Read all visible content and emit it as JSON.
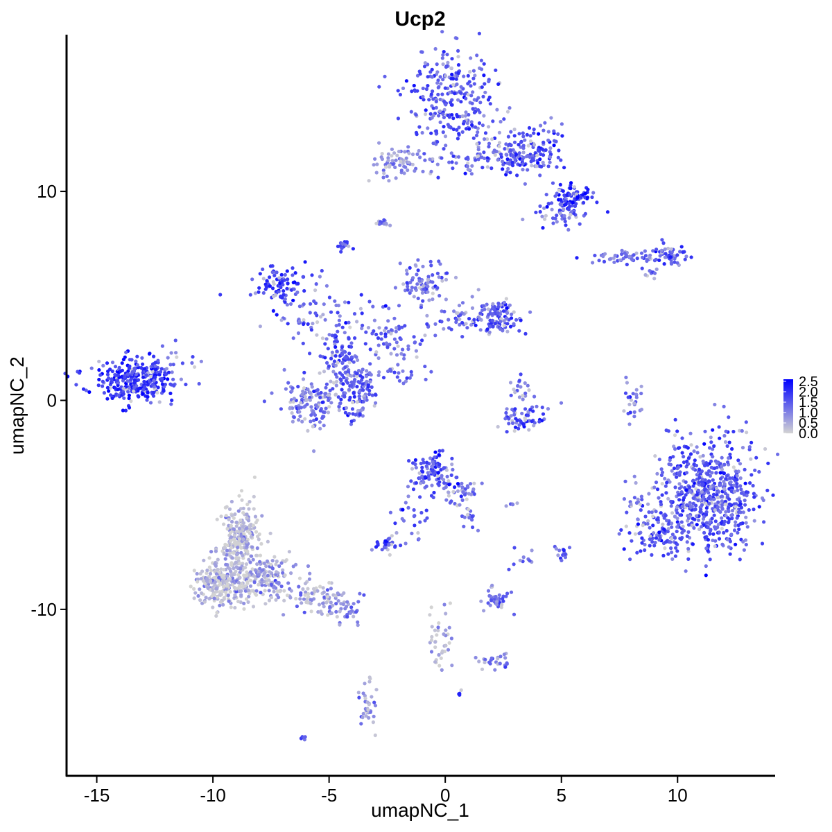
{
  "chart_data": {
    "type": "scatter",
    "title": "Ucp2",
    "xlabel": "umapNC_1",
    "ylabel": "umapNC_2",
    "xlim": [
      -16.3,
      14.2
    ],
    "ylim": [
      -18.0,
      17.5
    ],
    "x_ticks": [
      -15,
      -10,
      -5,
      0,
      5,
      10
    ],
    "x_tick_labels": [
      "-15",
      "-10",
      "-5",
      "0",
      "5",
      "10"
    ],
    "y_ticks": [
      -10,
      0,
      10
    ],
    "y_tick_labels": [
      "-10",
      "0",
      "10"
    ],
    "grid": false,
    "legend": {
      "placement": "right",
      "ticks": [
        0.0,
        0.5,
        1.0,
        1.5,
        2.0,
        2.5
      ],
      "tick_labels": [
        "0.0",
        "0.5",
        "1.0",
        "1.5",
        "2.0",
        "2.5"
      ],
      "min": 0.0,
      "max": 2.6,
      "low_color": "#d3d3d3",
      "high_color": "#0000ff"
    },
    "clusters": [
      {
        "cx": 0.3,
        "cy": 14.5,
        "sx": 0.9,
        "sy": 1.2,
        "n": 260,
        "expr": 1.5
      },
      {
        "cx": 3.3,
        "cy": 12.0,
        "sx": 0.9,
        "sy": 0.6,
        "n": 170,
        "expr": 1.6
      },
      {
        "cx": 5.5,
        "cy": 9.7,
        "sx": 0.4,
        "sy": 0.3,
        "n": 80,
        "expr": 1.9
      },
      {
        "cx": 1.3,
        "cy": 11.5,
        "sx": 1.2,
        "sy": 0.5,
        "n": 60,
        "expr": 1.3
      },
      {
        "cx": 4.7,
        "cy": 9.0,
        "sx": 0.6,
        "sy": 0.4,
        "n": 50,
        "expr": 1.4
      },
      {
        "cx": -2.0,
        "cy": 11.5,
        "sx": 0.6,
        "sy": 0.4,
        "n": 70,
        "expr": 0.9
      },
      {
        "cx": -2.7,
        "cy": 8.5,
        "sx": 0.15,
        "sy": 0.1,
        "n": 12,
        "expr": 1.0
      },
      {
        "cx": -4.4,
        "cy": 7.4,
        "sx": 0.15,
        "sy": 0.2,
        "n": 15,
        "expr": 1.6
      },
      {
        "cx": 9.5,
        "cy": 6.9,
        "sx": 0.5,
        "sy": 0.25,
        "n": 60,
        "expr": 1.5
      },
      {
        "cx": 7.5,
        "cy": 6.8,
        "sx": 0.6,
        "sy": 0.15,
        "n": 40,
        "expr": 1.3
      },
      {
        "cx": 8.8,
        "cy": 6.1,
        "sx": 0.2,
        "sy": 0.15,
        "n": 10,
        "expr": 1.2
      },
      {
        "cx": -7.2,
        "cy": 5.5,
        "sx": 0.6,
        "sy": 0.5,
        "n": 90,
        "expr": 1.8
      },
      {
        "cx": -5.5,
        "cy": 4.0,
        "sx": 1.0,
        "sy": 0.8,
        "n": 70,
        "expr": 1.3
      },
      {
        "cx": -1.0,
        "cy": 5.5,
        "sx": 0.5,
        "sy": 0.6,
        "n": 80,
        "expr": 1.3
      },
      {
        "cx": 1.3,
        "cy": 4.0,
        "sx": 0.9,
        "sy": 0.5,
        "n": 80,
        "expr": 1.4
      },
      {
        "cx": 2.3,
        "cy": 4.0,
        "sx": 0.4,
        "sy": 0.4,
        "n": 80,
        "expr": 1.6
      },
      {
        "cx": -2.3,
        "cy": 3.0,
        "sx": 1.0,
        "sy": 0.8,
        "n": 80,
        "expr": 1.3
      },
      {
        "cx": -4.5,
        "cy": 2.0,
        "sx": 0.4,
        "sy": 0.6,
        "n": 80,
        "expr": 1.4
      },
      {
        "cx": -5.8,
        "cy": -0.1,
        "sx": 0.6,
        "sy": 0.6,
        "n": 130,
        "expr": 1.2
      },
      {
        "cx": -3.8,
        "cy": 0.5,
        "sx": 0.4,
        "sy": 0.7,
        "n": 130,
        "expr": 1.4
      },
      {
        "cx": -1.7,
        "cy": 1.2,
        "sx": 0.5,
        "sy": 0.3,
        "n": 20,
        "expr": 1.3
      },
      {
        "cx": -13.5,
        "cy": 0.9,
        "sx": 0.8,
        "sy": 0.5,
        "n": 280,
        "expr": 1.9
      },
      {
        "cx": -12.0,
        "cy": 1.5,
        "sx": 0.6,
        "sy": 0.6,
        "n": 50,
        "expr": 1.5
      },
      {
        "cx": 3.2,
        "cy": -0.8,
        "sx": 0.7,
        "sy": 0.3,
        "n": 60,
        "expr": 1.6
      },
      {
        "cx": 3.2,
        "cy": 0.6,
        "sx": 0.3,
        "sy": 0.3,
        "n": 20,
        "expr": 1.2
      },
      {
        "cx": 8.1,
        "cy": 0.0,
        "sx": 0.2,
        "sy": 0.6,
        "n": 25,
        "expr": 1.2
      },
      {
        "cx": 11.3,
        "cy": -4.5,
        "sx": 1.1,
        "sy": 1.3,
        "n": 650,
        "expr": 1.5
      },
      {
        "cx": 9.2,
        "cy": -6.5,
        "sx": 0.7,
        "sy": 0.5,
        "n": 80,
        "expr": 1.6
      },
      {
        "cx": 8.2,
        "cy": -5.0,
        "sx": 0.3,
        "sy": 0.5,
        "n": 20,
        "expr": 1.3
      },
      {
        "cx": -0.5,
        "cy": -3.5,
        "sx": 0.5,
        "sy": 0.5,
        "n": 110,
        "expr": 1.6
      },
      {
        "cx": 0.6,
        "cy": -4.5,
        "sx": 0.5,
        "sy": 0.4,
        "n": 35,
        "expr": 1.1
      },
      {
        "cx": 1.0,
        "cy": -5.7,
        "sx": 0.2,
        "sy": 0.4,
        "n": 15,
        "expr": 1.2
      },
      {
        "cx": -1.5,
        "cy": -6.0,
        "sx": 0.5,
        "sy": 0.6,
        "n": 25,
        "expr": 1.2
      },
      {
        "cx": -2.5,
        "cy": -6.9,
        "sx": 0.3,
        "sy": 0.2,
        "n": 30,
        "expr": 1.5
      },
      {
        "cx": 2.2,
        "cy": -9.5,
        "sx": 0.3,
        "sy": 0.3,
        "n": 40,
        "expr": 1.3
      },
      {
        "cx": 5.0,
        "cy": -7.3,
        "sx": 0.15,
        "sy": 0.2,
        "n": 15,
        "expr": 1.3
      },
      {
        "cx": 3.4,
        "cy": -7.6,
        "sx": 0.3,
        "sy": 0.3,
        "n": 10,
        "expr": 1.1
      },
      {
        "cx": 2.9,
        "cy": -5.0,
        "sx": 0.15,
        "sy": 0.1,
        "n": 6,
        "expr": 1.2
      },
      {
        "cx": -8.8,
        "cy": -6.5,
        "sx": 0.4,
        "sy": 0.8,
        "n": 220,
        "expr": 0.2
      },
      {
        "cx": -9.6,
        "cy": -8.8,
        "sx": 0.6,
        "sy": 0.6,
        "n": 260,
        "expr": 0.3
      },
      {
        "cx": -7.8,
        "cy": -8.5,
        "sx": 0.7,
        "sy": 0.6,
        "n": 160,
        "expr": 0.5
      },
      {
        "cx": -5.5,
        "cy": -9.4,
        "sx": 0.7,
        "sy": 0.4,
        "n": 80,
        "expr": 0.6
      },
      {
        "cx": -4.2,
        "cy": -10.1,
        "sx": 0.4,
        "sy": 0.3,
        "n": 30,
        "expr": 0.9
      },
      {
        "cx": -0.2,
        "cy": -11.5,
        "sx": 0.3,
        "sy": 0.8,
        "n": 40,
        "expr": 0.4
      },
      {
        "cx": 2.2,
        "cy": -12.5,
        "sx": 0.4,
        "sy": 0.2,
        "n": 25,
        "expr": 0.9
      },
      {
        "cx": -3.3,
        "cy": -14.6,
        "sx": 0.2,
        "sy": 0.6,
        "n": 35,
        "expr": 0.8
      },
      {
        "cx": -6.0,
        "cy": -16.2,
        "sx": 0.1,
        "sy": 0.08,
        "n": 5,
        "expr": 1.5
      },
      {
        "cx": 0.6,
        "cy": -14.1,
        "sx": 0.08,
        "sy": 0.08,
        "n": 4,
        "expr": 2.2
      }
    ]
  }
}
